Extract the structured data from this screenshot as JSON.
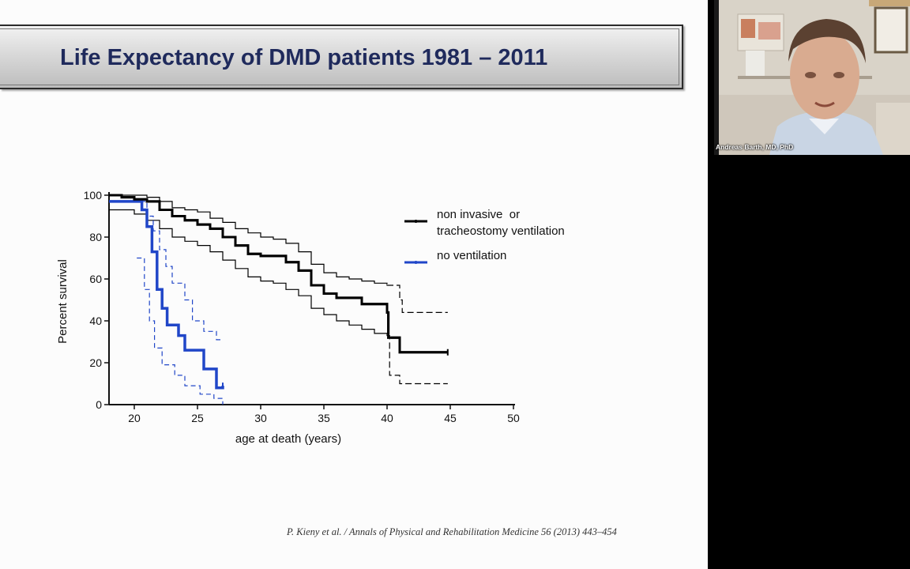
{
  "slide": {
    "title": "Life Expectancy of DMD patients 1981 – 2011",
    "citation": "P. Kieny et al. / Annals of Physical and Rehabilitation Medicine 56 (2013) 443–454"
  },
  "video": {
    "participant_name": "Andreas Barth, MD, PhD"
  },
  "chart_data": {
    "type": "line",
    "subtype": "kaplan-meier step",
    "title": "",
    "xlabel": "age at death (years)",
    "ylabel": "Percent survival",
    "xlim": [
      18,
      50
    ],
    "ylim": [
      0,
      100
    ],
    "xticks": [
      20,
      25,
      30,
      35,
      40,
      45,
      50
    ],
    "yticks": [
      0,
      20,
      40,
      60,
      80,
      100
    ],
    "legend_position": "top-right",
    "series": [
      {
        "name": "non invasive or tracheostomy ventilation",
        "legend_lines": [
          "non invasive  or",
          "tracheostomy ventilation"
        ],
        "color": "#000000",
        "points": [
          [
            18,
            100
          ],
          [
            19,
            99
          ],
          [
            20,
            98
          ],
          [
            21,
            97
          ],
          [
            22,
            93
          ],
          [
            23,
            90
          ],
          [
            24,
            88
          ],
          [
            25,
            86
          ],
          [
            26,
            84
          ],
          [
            27,
            80
          ],
          [
            28,
            76
          ],
          [
            29,
            72
          ],
          [
            30,
            71
          ],
          [
            31,
            71
          ],
          [
            32,
            68
          ],
          [
            33,
            64
          ],
          [
            34,
            57
          ],
          [
            35,
            53
          ],
          [
            36,
            51
          ],
          [
            37,
            51
          ],
          [
            38,
            48
          ],
          [
            39,
            48
          ],
          [
            40,
            44
          ],
          [
            40.1,
            32
          ],
          [
            41,
            25
          ],
          [
            44.8,
            25
          ]
        ],
        "ci_upper": [
          [
            18,
            100
          ],
          [
            19,
            100
          ],
          [
            20,
            100
          ],
          [
            21,
            99
          ],
          [
            22,
            97
          ],
          [
            23,
            94
          ],
          [
            24,
            93
          ],
          [
            25,
            92
          ],
          [
            26,
            89
          ],
          [
            27,
            87
          ],
          [
            28,
            84
          ],
          [
            29,
            82
          ],
          [
            30,
            80
          ],
          [
            31,
            79
          ],
          [
            32,
            77
          ],
          [
            33,
            73
          ],
          [
            34,
            67
          ],
          [
            35,
            63
          ],
          [
            36,
            61
          ],
          [
            37,
            60
          ],
          [
            38,
            59
          ],
          [
            39,
            58
          ],
          [
            40,
            57
          ],
          [
            41,
            50
          ],
          [
            41.2,
            44
          ],
          [
            44.8,
            44
          ]
        ],
        "ci_lower": [
          [
            18,
            93
          ],
          [
            20,
            91
          ],
          [
            21,
            88
          ],
          [
            22,
            84
          ],
          [
            23,
            80
          ],
          [
            24,
            78
          ],
          [
            25,
            76
          ],
          [
            26,
            73
          ],
          [
            27,
            69
          ],
          [
            28,
            65
          ],
          [
            29,
            61
          ],
          [
            30,
            59
          ],
          [
            31,
            58
          ],
          [
            32,
            55
          ],
          [
            33,
            52
          ],
          [
            34,
            46
          ],
          [
            35,
            43
          ],
          [
            36,
            40
          ],
          [
            37,
            38
          ],
          [
            38,
            36
          ],
          [
            39,
            34
          ],
          [
            40,
            33
          ],
          [
            40.2,
            14
          ],
          [
            41,
            10
          ],
          [
            44.8,
            10
          ]
        ]
      },
      {
        "name": "no ventilation",
        "legend_lines": [
          "no ventilation"
        ],
        "color": "#2046c8",
        "points": [
          [
            18,
            97
          ],
          [
            20.5,
            97
          ],
          [
            20.6,
            93
          ],
          [
            21,
            85
          ],
          [
            21.4,
            73
          ],
          [
            21.8,
            55
          ],
          [
            22.2,
            46
          ],
          [
            22.6,
            38
          ],
          [
            23.5,
            33
          ],
          [
            24,
            26
          ],
          [
            25.3,
            26
          ],
          [
            25.5,
            17
          ],
          [
            26.3,
            17
          ],
          [
            26.5,
            8
          ],
          [
            27,
            9
          ]
        ],
        "ci_upper": [
          [
            18,
            97
          ],
          [
            20.5,
            97
          ],
          [
            21,
            90
          ],
          [
            21.5,
            83
          ],
          [
            22,
            74
          ],
          [
            22.5,
            66
          ],
          [
            23,
            58
          ],
          [
            24,
            50
          ],
          [
            24.6,
            40
          ],
          [
            25.5,
            35
          ],
          [
            26.5,
            31
          ],
          [
            27,
            31
          ]
        ],
        "ci_lower": [
          [
            20.2,
            70
          ],
          [
            20.8,
            55
          ],
          [
            21.2,
            40
          ],
          [
            21.6,
            27
          ],
          [
            22.2,
            19
          ],
          [
            23.2,
            14
          ],
          [
            24,
            9
          ],
          [
            25.2,
            5
          ],
          [
            26.3,
            3
          ],
          [
            27,
            0
          ]
        ]
      }
    ]
  }
}
